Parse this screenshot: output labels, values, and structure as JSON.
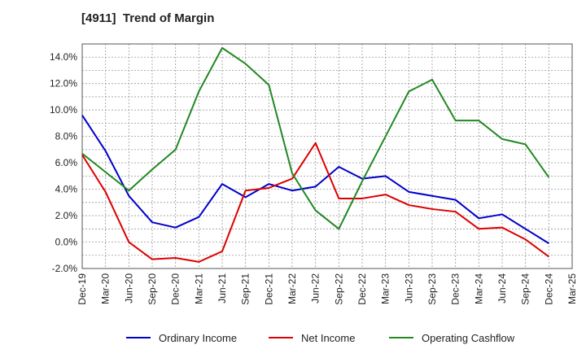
{
  "title": "[4911]  Trend of Margin",
  "chart_data": {
    "type": "line",
    "title": "[4911]  Trend of Margin",
    "xlabel": "",
    "ylabel": "",
    "categories": [
      "Dec-19",
      "Mar-20",
      "Jun-20",
      "Sep-20",
      "Dec-20",
      "Mar-21",
      "Jun-21",
      "Sep-21",
      "Dec-21",
      "Mar-22",
      "Jun-22",
      "Sep-22",
      "Dec-22",
      "Mar-23",
      "Jun-23",
      "Sep-23",
      "Dec-23",
      "Mar-24",
      "Jun-24",
      "Sep-24",
      "Dec-24",
      "Mar-25"
    ],
    "ylim": [
      -2.0,
      15.0
    ],
    "yticks": [
      -2.0,
      0.0,
      2.0,
      4.0,
      6.0,
      8.0,
      10.0,
      12.0,
      14.0
    ],
    "ytick_labels": [
      "-2.0%",
      "0.0%",
      "2.0%",
      "4.0%",
      "6.0%",
      "8.0%",
      "10.0%",
      "12.0%",
      "14.0%"
    ],
    "grid": true,
    "legend_position": "bottom",
    "series": [
      {
        "name": "Ordinary Income",
        "color": "#0000cc",
        "values": [
          9.6,
          6.9,
          3.5,
          1.5,
          1.1,
          1.9,
          4.4,
          3.4,
          4.4,
          3.9,
          4.2,
          5.7,
          4.8,
          5.0,
          3.8,
          3.5,
          3.2,
          1.8,
          2.1,
          1.0,
          -0.1,
          null
        ]
      },
      {
        "name": "Net Income",
        "color": "#dd0000",
        "values": [
          6.6,
          3.8,
          0.0,
          -1.3,
          -1.2,
          -1.5,
          -0.7,
          3.9,
          4.1,
          4.8,
          7.5,
          3.3,
          3.3,
          3.6,
          2.8,
          2.5,
          2.3,
          1.0,
          1.1,
          0.2,
          -1.1,
          null
        ]
      },
      {
        "name": "Operating Cashflow",
        "color": "#228822",
        "values": [
          6.7,
          5.3,
          3.9,
          5.5,
          7.0,
          11.4,
          14.7,
          13.5,
          11.9,
          5.2,
          2.4,
          1.0,
          4.6,
          8.0,
          11.4,
          12.3,
          9.2,
          9.2,
          7.8,
          7.4,
          4.9,
          null
        ]
      }
    ]
  }
}
